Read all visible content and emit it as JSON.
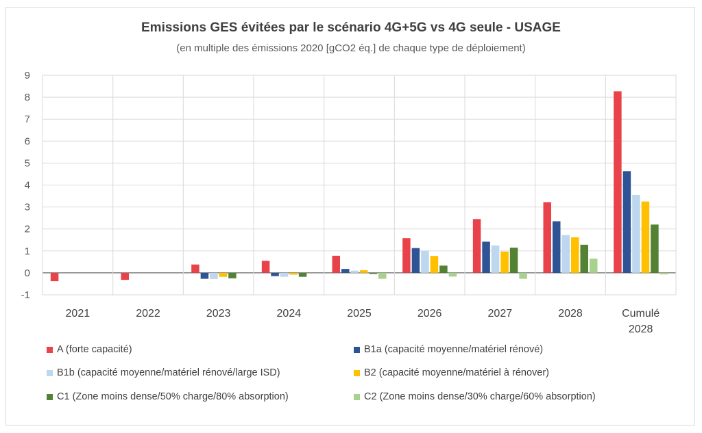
{
  "chart_data": {
    "type": "bar",
    "title": "Emissions GES évitées par le scénario 4G+5G vs 4G seule - USAGE",
    "subtitle": "(en multiple des émissions 2020 [gCO2 éq.] de chaque type de déploiement)",
    "categories": [
      "2021",
      "2022",
      "2023",
      "2024",
      "2025",
      "2026",
      "2027",
      "2028",
      "Cumulé 2028"
    ],
    "ylim": [
      -1,
      9
    ],
    "yticks": [
      "-1",
      "0",
      "1",
      "2",
      "3",
      "4",
      "5",
      "6",
      "7",
      "8",
      "9"
    ],
    "grid": true,
    "legend_position": "bottom",
    "series": [
      {
        "name": "A (forte capacité)",
        "color": "#e8424a",
        "values": [
          -0.38,
          -0.32,
          0.38,
          0.55,
          0.78,
          1.58,
          2.45,
          3.22,
          8.27
        ]
      },
      {
        "name": "B1a (capacité moyenne/matériel rénové)",
        "color": "#2e5496",
        "values": [
          0,
          0,
          -0.27,
          -0.15,
          0.18,
          1.13,
          1.42,
          2.35,
          4.63
        ]
      },
      {
        "name": "B1b (capacité moyenne/matériel rénové/large ISD)",
        "color": "#bdd7ee",
        "values": [
          0,
          0,
          -0.28,
          -0.18,
          0.1,
          1.0,
          1.25,
          1.72,
          3.55
        ]
      },
      {
        "name": "B2 (capacité moyenne/matériel à rénover)",
        "color": "#ffc000",
        "values": [
          0,
          0,
          -0.18,
          -0.08,
          0.12,
          0.77,
          0.97,
          1.62,
          3.25
        ]
      },
      {
        "name": "C1 (Zone moins dense/50% charge/80% absorption)",
        "color": "#548235",
        "values": [
          0,
          0,
          -0.25,
          -0.18,
          -0.05,
          0.33,
          1.15,
          1.28,
          2.2
        ]
      },
      {
        "name": "C2 (Zone moins dense/30% charge/60% absorption)",
        "color": "#a9d18e",
        "values": [
          0,
          0,
          0,
          0,
          -0.27,
          -0.17,
          -0.27,
          0.65,
          -0.07
        ]
      }
    ]
  }
}
